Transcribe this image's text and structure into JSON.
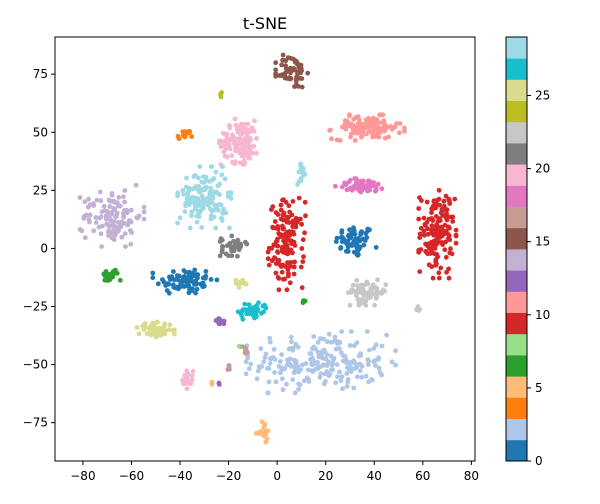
{
  "chart_data": {
    "type": "scatter",
    "title": "t-SNE",
    "xlabel": "",
    "ylabel": "",
    "xlim": [
      -91.5,
      81.5
    ],
    "ylim": [
      -91.5,
      91
    ],
    "xticks": [
      -80,
      -60,
      -40,
      -20,
      0,
      20,
      40,
      60,
      80
    ],
    "xtick_labels": [
      "−80",
      "−60",
      "−40",
      "−20",
      "0",
      "20",
      "40",
      "60",
      "80"
    ],
    "yticks": [
      -75,
      -50,
      -25,
      0,
      25,
      50,
      75
    ],
    "ytick_labels": [
      "−75",
      "−50",
      "−25",
      "0",
      "25",
      "50",
      "75"
    ],
    "grid": false,
    "colormap": "tab20",
    "colorbar": {
      "vmin": 0,
      "vmax": 29,
      "ticks": [
        0,
        5,
        10,
        15,
        20,
        25
      ],
      "tick_labels": [
        "0",
        "5",
        "10",
        "15",
        "20",
        "25"
      ],
      "colors": [
        "#1f77b4",
        "#aec7e8",
        "#ff7f0e",
        "#ffbb78",
        "#2ca02c",
        "#98df8a",
        "#d62728",
        "#ff9896",
        "#9467bd",
        "#c5b0d5",
        "#8c564b",
        "#c49c94",
        "#e377c2",
        "#f7b6d2",
        "#7f7f7f",
        "#c7c7c7",
        "#bcbd22",
        "#dbdb8d",
        "#17becf",
        "#9edae5"
      ]
    },
    "clusters": [
      {
        "label": 0,
        "color": "#1f77b4",
        "cx": 32,
        "cy": 3,
        "sx": 4,
        "sy": 3.5,
        "n": 60
      },
      {
        "label": 0,
        "color": "#1f77b4",
        "cx": -38,
        "cy": -14,
        "sx": 6,
        "sy": 3,
        "n": 80
      },
      {
        "label": 2,
        "color": "#aec7e8",
        "cx": 18,
        "cy": -49,
        "sx": 14,
        "sy": 6,
        "n": 220
      },
      {
        "label": 4,
        "color": "#ff7f0e",
        "cx": -38,
        "cy": 49,
        "sx": 1.5,
        "sy": 1,
        "n": 16
      },
      {
        "label": 5,
        "color": "#ffbb78",
        "cx": -6,
        "cy": -79,
        "sx": 1.5,
        "sy": 2,
        "n": 18
      },
      {
        "label": 5,
        "color": "#ffbb78",
        "cx": -27,
        "cy": -58,
        "sx": 0.5,
        "sy": 0.5,
        "n": 3
      },
      {
        "label": 6,
        "color": "#2ca02c",
        "cx": -69,
        "cy": -12,
        "sx": 2,
        "sy": 1.5,
        "n": 20
      },
      {
        "label": 6,
        "color": "#2ca02c",
        "cx": 11,
        "cy": -22.5,
        "sx": 0.4,
        "sy": 0.4,
        "n": 4
      },
      {
        "label": 7,
        "color": "#98df8a",
        "cx": -15,
        "cy": -42,
        "sx": 0.3,
        "sy": 0.3,
        "n": 2
      },
      {
        "label": 10,
        "color": "#d62728",
        "cx": 4,
        "cy": 2,
        "sx": 3.5,
        "sy": 9,
        "n": 140
      },
      {
        "label": 10,
        "color": "#d62728",
        "cx": 66,
        "cy": 7,
        "sx": 3.5,
        "sy": 9,
        "n": 140
      },
      {
        "label": 11,
        "color": "#ff9896",
        "cx": 37,
        "cy": 52,
        "sx": 7,
        "sy": 2.5,
        "n": 120
      },
      {
        "label": 12,
        "color": "#9467bd",
        "cx": -23,
        "cy": -32,
        "sx": 1,
        "sy": 1,
        "n": 12
      },
      {
        "label": 12,
        "color": "#9467bd",
        "cx": -24,
        "cy": -58,
        "sx": 0.3,
        "sy": 0.3,
        "n": 2
      },
      {
        "label": 13,
        "color": "#c5b0d5",
        "cx": -68,
        "cy": 14,
        "sx": 6,
        "sy": 6,
        "n": 120
      },
      {
        "label": 14,
        "color": "#8c564b",
        "cx": 6,
        "cy": 76,
        "sx": 3,
        "sy": 3.5,
        "n": 60
      },
      {
        "label": 15,
        "color": "#c49c94",
        "cx": -13,
        "cy": -44,
        "sx": 0.6,
        "sy": 1.5,
        "n": 8
      },
      {
        "label": 15,
        "color": "#c49c94",
        "cx": -20,
        "cy": -52,
        "sx": 0.5,
        "sy": 1.2,
        "n": 6
      },
      {
        "label": 16,
        "color": "#e377c2",
        "cx": 35,
        "cy": 27,
        "sx": 5,
        "sy": 1.5,
        "n": 60
      },
      {
        "label": 17,
        "color": "#f7b6d2",
        "cx": -15,
        "cy": 46,
        "sx": 4,
        "sy": 4.5,
        "n": 120
      },
      {
        "label": 17,
        "color": "#f7b6d2",
        "cx": -37,
        "cy": -56,
        "sx": 1.2,
        "sy": 2,
        "n": 20
      },
      {
        "label": 18,
        "color": "#7f7f7f",
        "cx": -18,
        "cy": 1,
        "sx": 2.5,
        "sy": 2,
        "n": 40
      },
      {
        "label": 19,
        "color": "#c7c7c7",
        "cx": 37,
        "cy": -19,
        "sx": 4,
        "sy": 2.5,
        "n": 60
      },
      {
        "label": 19,
        "color": "#c7c7c7",
        "cx": 58,
        "cy": -26,
        "sx": 0.5,
        "sy": 1,
        "n": 4
      },
      {
        "label": 20,
        "color": "#bcbd22",
        "cx": -23,
        "cy": 66,
        "sx": 0.5,
        "sy": 0.5,
        "n": 4
      },
      {
        "label": 21,
        "color": "#dbdb8d",
        "cx": -50,
        "cy": -35,
        "sx": 3.5,
        "sy": 1.5,
        "n": 60
      },
      {
        "label": 21,
        "color": "#dbdb8d",
        "cx": -15,
        "cy": -15,
        "sx": 1.5,
        "sy": 0.8,
        "n": 14
      },
      {
        "label": 22,
        "color": "#17becf",
        "cx": -10,
        "cy": -27,
        "sx": 3,
        "sy": 2,
        "n": 40
      },
      {
        "label": 23,
        "color": "#9edae5",
        "cx": -30,
        "cy": 22,
        "sx": 5,
        "sy": 6,
        "n": 140
      },
      {
        "label": 23,
        "color": "#9edae5",
        "cx": 10,
        "cy": 33,
        "sx": 1,
        "sy": 2.5,
        "n": 14
      }
    ]
  }
}
